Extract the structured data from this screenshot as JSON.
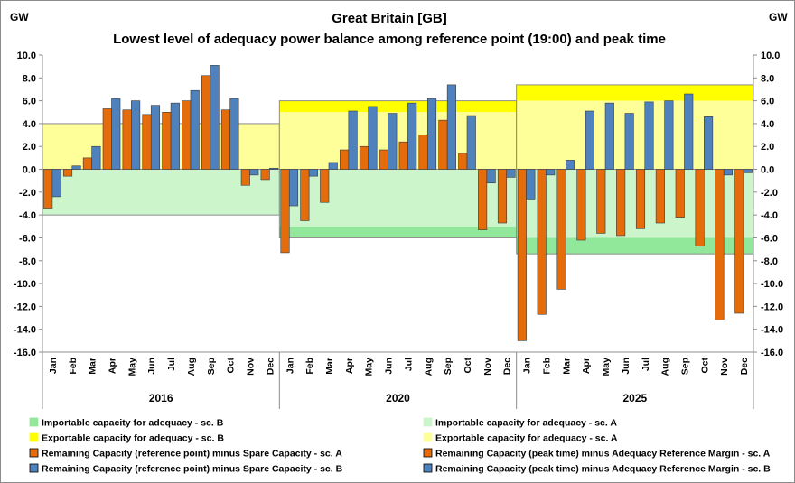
{
  "chart_data": {
    "type": "bar",
    "title": "Great Britain [GB]",
    "subtitle": "Lowest level of adequacy power balance among reference point (19:00) and peak time",
    "unit_left": "GW",
    "unit_right": "GW",
    "ylim": [
      -16,
      10
    ],
    "yticks": [
      "10.0",
      "8.0",
      "6.0",
      "4.0",
      "2.0",
      "0.0",
      "-2.0",
      "-4.0",
      "-6.0",
      "-8.0",
      "-10.0",
      "-12.0",
      "-14.0",
      "-16.0"
    ],
    "ytick_values": [
      10,
      8,
      6,
      4,
      2,
      0,
      -2,
      -4,
      -6,
      -8,
      -10,
      -12,
      -14,
      -16
    ],
    "months": [
      "Jan",
      "Feb",
      "Mar",
      "Apr",
      "May",
      "Jun",
      "Jul",
      "Aug",
      "Sep",
      "Oct",
      "Nov",
      "Dec"
    ],
    "years": [
      "2016",
      "2020",
      "2025"
    ],
    "bands": [
      {
        "year": "2016",
        "export_a": 4.0,
        "export_b": 4.0,
        "import_a": -4.0,
        "import_b": -4.0
      },
      {
        "year": "2020",
        "export_a": 5.0,
        "export_b": 6.0,
        "import_a": -5.0,
        "import_b": -6.0
      },
      {
        "year": "2025",
        "export_a": 6.0,
        "export_b": 7.4,
        "import_a": -6.0,
        "import_b": -7.4
      }
    ],
    "series": [
      {
        "name": "Remaining Capacity (reference point) minus Spare Capacity - sc. A",
        "color": "#E46C0A",
        "values": [
          -3.4,
          -0.6,
          1.0,
          5.3,
          5.2,
          4.8,
          5.0,
          6.0,
          8.2,
          5.2,
          -1.4,
          -0.9,
          -7.3,
          -4.5,
          -2.9,
          1.7,
          2.0,
          1.7,
          2.4,
          3.0,
          4.3,
          1.4,
          -5.3,
          -4.7,
          -15.0,
          -12.7,
          -10.5,
          -6.2,
          -5.6,
          -5.8,
          -5.2,
          -4.7,
          -4.2,
          -6.7,
          -13.2,
          -12.6
        ]
      },
      {
        "name": "Remaining Capacity (reference point) minus Spare Capacity - sc. B",
        "color": "#4F81BD",
        "values": [
          -2.4,
          0.3,
          2.0,
          6.2,
          6.0,
          5.6,
          5.8,
          6.9,
          9.1,
          6.2,
          -0.5,
          0.1,
          -3.2,
          -0.6,
          0.6,
          5.1,
          5.5,
          4.9,
          5.8,
          6.2,
          7.4,
          4.7,
          -1.2,
          -0.7,
          -2.6,
          -0.5,
          0.8,
          5.1,
          5.8,
          4.9,
          5.9,
          6.0,
          6.6,
          4.6,
          -0.5,
          -0.3
        ]
      }
    ],
    "legend": [
      {
        "label": "Importable capacity for adequacy - sc. B",
        "color": "#92E89A",
        "border": "#92E89A"
      },
      {
        "label": "Importable capacity for adequacy - sc. A",
        "color": "#CCF5CC",
        "border": "#CCF5CC"
      },
      {
        "label": "Exportable capacity for adequacy - sc. B",
        "color": "#FFFF00",
        "border": "#FFFF00"
      },
      {
        "label": "Exportable capacity for adequacy - sc. A",
        "color": "#FFFF99",
        "border": "#FFFF99"
      },
      {
        "label": "Remaining Capacity (reference point) minus Spare Capacity - sc. A",
        "color": "#E46C0A",
        "border": "#000000"
      },
      {
        "label": "Remaining Capacity (peak time) minus Adequacy Reference Margin - sc. A",
        "color": "#E46C0A",
        "border": "#000000"
      },
      {
        "label": "Remaining Capacity (reference point) minus Spare Capacity - sc. B",
        "color": "#4F81BD",
        "border": "#000000"
      },
      {
        "label": "Remaining Capacity (peak time) minus Adequacy Reference Margin - sc. B",
        "color": "#4F81BD",
        "border": "#000000"
      }
    ],
    "colors": {
      "export_a": "#FFFF99",
      "export_b": "#FFFF00",
      "import_a": "#CCF5CC",
      "import_b": "#92E89A",
      "band_border": "#8C8C8C"
    }
  }
}
